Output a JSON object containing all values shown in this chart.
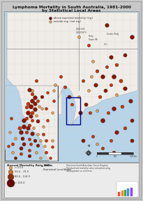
{
  "title_line1": "Lymphoma Mortality in South Australia, 1981-2000",
  "title_line2": "by Statistical Local Areas",
  "outer_bg": "#c8c8c8",
  "inner_bg": "#e8e8e4",
  "map_water_color": "#b8d4e8",
  "land_color": "#f0ede8",
  "sla_line_color": "#bbbbbb",
  "state_line_color": "#777777",
  "dot_dark": "#6b0000",
  "dot_mid": "#cc3300",
  "dot_light": "#e8a050",
  "dot_outline": "#333333",
  "highlight_box": "#000080",
  "legend_bg": "#e8e8e4",
  "legend_title": "Annual Mortality Rate (SR)",
  "title_fontsize": 4.8,
  "map_legend_items": [
    {
      "label": "above expected mortality (sig.)",
      "color": "#8b1500"
    },
    {
      "label": "outside exp. (not sig.)",
      "color": "#e8a050"
    }
  ]
}
